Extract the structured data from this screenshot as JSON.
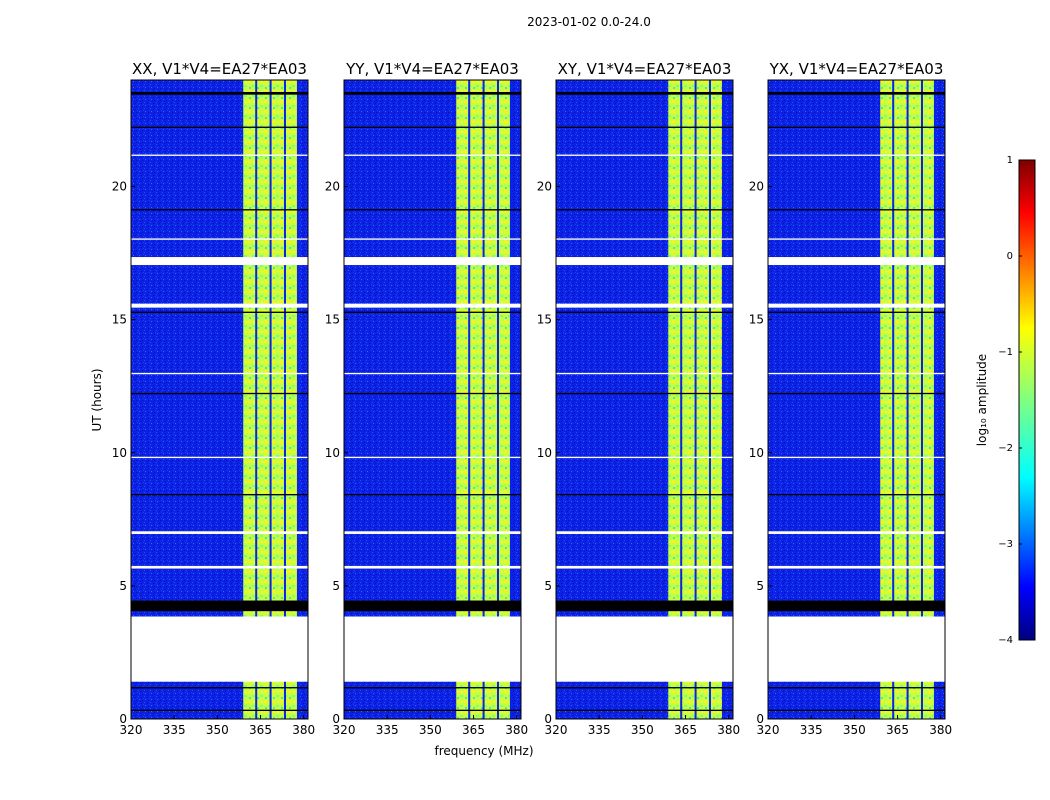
{
  "figure": {
    "suptitle": "2023-01-02 0.0-24.0",
    "ylabel": "UT (hours)",
    "xlabel": "frequency (MHz)"
  },
  "colors": {
    "background": "#0c22e6",
    "blank": "#ffffff",
    "axis": "#000000"
  },
  "chart_data": [
    {
      "type": "heatmap",
      "title": "XX, V1*V4=EA27*EA03",
      "xlim": [
        320,
        381.5
      ],
      "ylim": [
        0,
        24
      ],
      "xticks": [
        320,
        335,
        350,
        365,
        380
      ],
      "yticks": [
        0,
        5,
        10,
        15,
        20
      ],
      "rfi_band_MHz": [
        359,
        378
      ],
      "rfi_channel_edges_MHz": [
        363.5,
        368.5,
        373.5,
        378
      ],
      "blank_rows_UT": [
        [
          1.4,
          3.85
        ],
        [
          17.05,
          17.35
        ],
        [
          15.45,
          15.6
        ],
        [
          5.65,
          5.75
        ],
        [
          6.95,
          7.05
        ],
        [
          12.95,
          13.0
        ],
        [
          21.15,
          21.2
        ],
        [
          18.0,
          18.05
        ],
        [
          9.8,
          9.85
        ]
      ],
      "flagged_rows_UT": [
        [
          4.05,
          4.45
        ],
        [
          23.45,
          23.55
        ],
        [
          0.3,
          0.35
        ],
        [
          1.15,
          1.2
        ],
        [
          8.4,
          8.45
        ],
        [
          12.2,
          12.25
        ],
        [
          15.25,
          15.3
        ],
        [
          19.1,
          19.15
        ],
        [
          22.2,
          22.25
        ]
      ]
    },
    {
      "type": "heatmap",
      "title": "YY, V1*V4=EA27*EA03",
      "xlim": [
        320,
        381.5
      ],
      "ylim": [
        0,
        24
      ],
      "xticks": [
        320,
        335,
        350,
        365,
        380
      ],
      "yticks": [
        0,
        5,
        10,
        15,
        20
      ],
      "rfi_band_MHz": [
        359,
        378
      ],
      "rfi_channel_edges_MHz": [
        363.5,
        368.5,
        373.5,
        378
      ],
      "blank_rows_UT": [
        [
          1.4,
          3.85
        ],
        [
          17.05,
          17.35
        ],
        [
          15.45,
          15.6
        ],
        [
          5.65,
          5.75
        ],
        [
          6.95,
          7.05
        ],
        [
          12.95,
          13.0
        ],
        [
          21.15,
          21.2
        ],
        [
          18.0,
          18.05
        ],
        [
          9.8,
          9.85
        ]
      ],
      "flagged_rows_UT": [
        [
          4.05,
          4.45
        ],
        [
          23.45,
          23.55
        ],
        [
          0.3,
          0.35
        ],
        [
          1.15,
          1.2
        ],
        [
          8.4,
          8.45
        ],
        [
          12.2,
          12.25
        ],
        [
          15.25,
          15.3
        ],
        [
          19.1,
          19.15
        ],
        [
          22.2,
          22.25
        ]
      ]
    },
    {
      "type": "heatmap",
      "title": "XY, V1*V4=EA27*EA03",
      "xlim": [
        320,
        381.5
      ],
      "ylim": [
        0,
        24
      ],
      "xticks": [
        320,
        335,
        350,
        365,
        380
      ],
      "yticks": [
        0,
        5,
        10,
        15,
        20
      ],
      "rfi_band_MHz": [
        359,
        378
      ],
      "rfi_channel_edges_MHz": [
        363.5,
        368.5,
        373.5,
        378
      ],
      "blank_rows_UT": [
        [
          1.4,
          3.85
        ],
        [
          17.05,
          17.35
        ],
        [
          15.45,
          15.6
        ],
        [
          5.65,
          5.75
        ],
        [
          6.95,
          7.05
        ],
        [
          12.95,
          13.0
        ],
        [
          21.15,
          21.2
        ],
        [
          18.0,
          18.05
        ],
        [
          9.8,
          9.85
        ]
      ],
      "flagged_rows_UT": [
        [
          4.05,
          4.45
        ],
        [
          23.45,
          23.55
        ],
        [
          0.3,
          0.35
        ],
        [
          1.15,
          1.2
        ],
        [
          8.4,
          8.45
        ],
        [
          12.2,
          12.25
        ],
        [
          15.25,
          15.3
        ],
        [
          19.1,
          19.15
        ],
        [
          22.2,
          22.25
        ]
      ]
    },
    {
      "type": "heatmap",
      "title": "YX, V1*V4=EA27*EA03",
      "xlim": [
        320,
        381.5
      ],
      "ylim": [
        0,
        24
      ],
      "xticks": [
        320,
        335,
        350,
        365,
        380
      ],
      "yticks": [
        0,
        5,
        10,
        15,
        20
      ],
      "rfi_band_MHz": [
        359,
        378
      ],
      "rfi_channel_edges_MHz": [
        363.5,
        368.5,
        373.5,
        378
      ],
      "blank_rows_UT": [
        [
          1.4,
          3.85
        ],
        [
          17.05,
          17.35
        ],
        [
          15.45,
          15.6
        ],
        [
          5.65,
          5.75
        ],
        [
          6.95,
          7.05
        ],
        [
          12.95,
          13.0
        ],
        [
          21.15,
          21.2
        ],
        [
          18.0,
          18.05
        ],
        [
          9.8,
          9.85
        ]
      ],
      "flagged_rows_UT": [
        [
          4.05,
          4.45
        ],
        [
          23.45,
          23.55
        ],
        [
          0.3,
          0.35
        ],
        [
          1.15,
          1.2
        ],
        [
          8.4,
          8.45
        ],
        [
          12.2,
          12.25
        ],
        [
          15.25,
          15.3
        ],
        [
          19.1,
          19.15
        ],
        [
          22.2,
          22.25
        ]
      ]
    }
  ],
  "colorbar": {
    "label": "log₁₀ amplitude",
    "range": [
      -4,
      1
    ],
    "ticks": [
      1,
      0,
      -1,
      -2,
      -3,
      -4
    ],
    "tick_labels": [
      "1",
      "0",
      "−1",
      "−2",
      "−3",
      "−4"
    ],
    "colormap": "jet"
  }
}
